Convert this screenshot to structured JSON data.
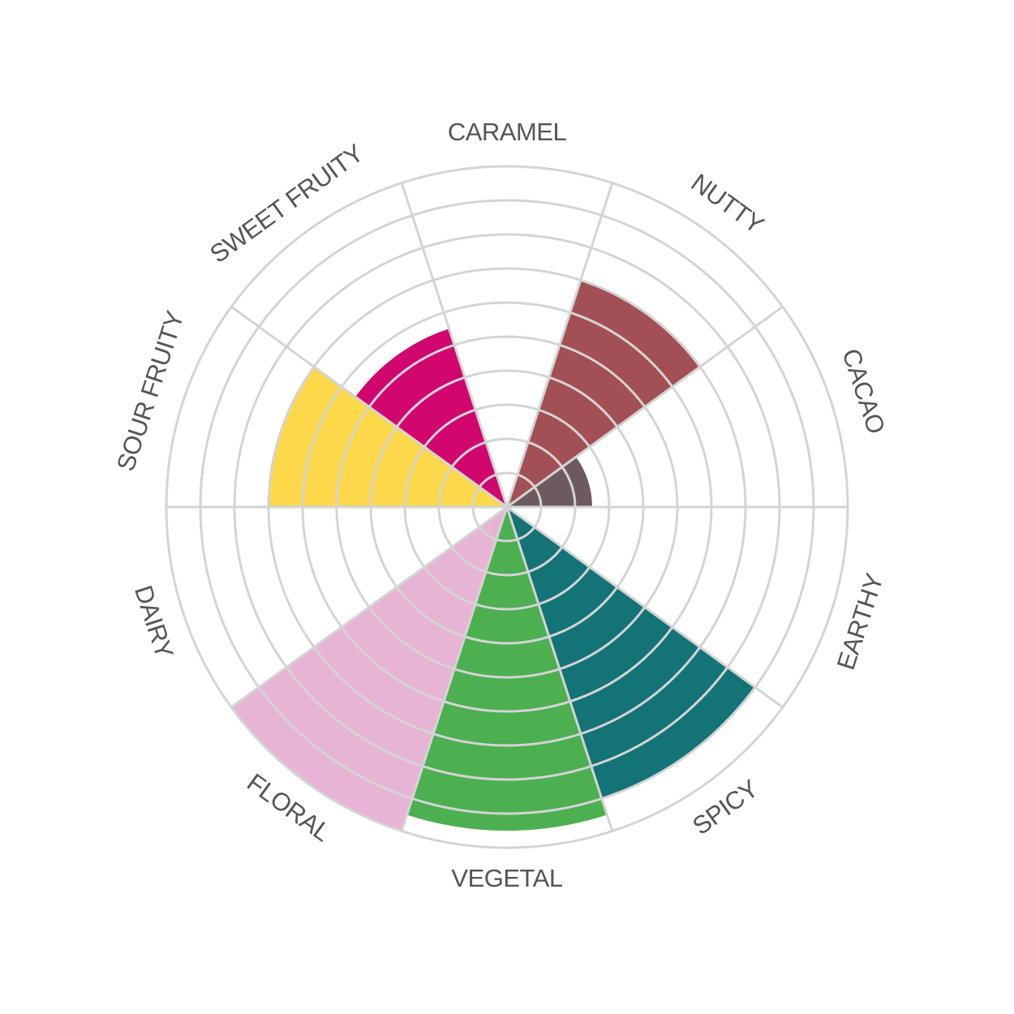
{
  "chart_data": {
    "type": "polar-area",
    "categories": [
      "CARAMEL",
      "NUTTY",
      "CACAO",
      "EARTHY",
      "SPICY",
      "VEGETAL",
      "FLORAL",
      "DAIRY",
      "SOUR FRUITY",
      "SWEET FRUITY"
    ],
    "values": [
      0,
      7,
      2.5,
      0,
      9,
      9.5,
      10,
      0,
      7,
      5.5
    ],
    "colors": [
      "#c89a5a",
      "#a24f55",
      "#6e5a5e",
      "#7a5a3a",
      "#147377",
      "#4caf50",
      "#e8b4d6",
      "#f2ead8",
      "#fdd84a",
      "#d1066f"
    ],
    "rlim": [
      0,
      10
    ],
    "rticks": [
      1,
      2,
      3,
      4,
      5,
      6,
      7,
      8,
      9,
      10
    ],
    "grid": true
  }
}
